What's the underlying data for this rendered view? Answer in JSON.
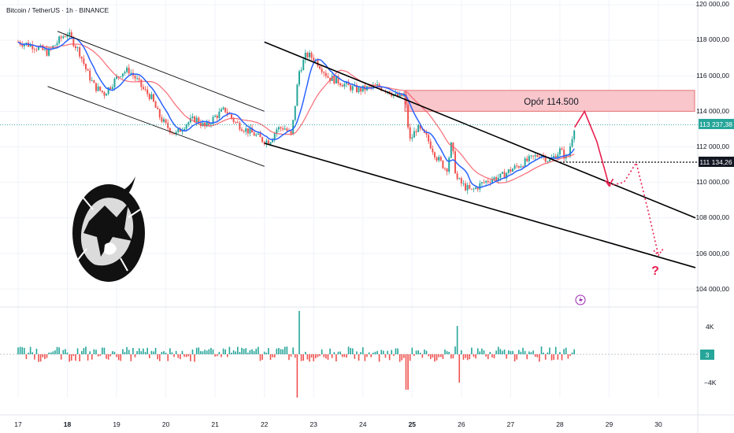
{
  "header": {
    "title": "Bitcoin / TetherUS · 1h · BINANCE"
  },
  "price_axis": {
    "ticks": [
      "120 000,00",
      "118 000,00",
      "116 000,00",
      "114 000,00",
      "112 000,00",
      "110 000,00",
      "108 000,00",
      "106 000,00",
      "104 000,00"
    ]
  },
  "badges": {
    "current_price": "113 237,38",
    "level_price": "111 134,26",
    "volume_value": "3"
  },
  "volume_axis": {
    "ticks": [
      "4K",
      "−4K"
    ]
  },
  "resistance": {
    "label": "Opór 114.500"
  },
  "question_mark": "?",
  "colors": {
    "up": "#26a69a",
    "down": "#ef5350",
    "ma_fast": "#2962ff",
    "ma_slow": "#f7525f",
    "zone": "#f8c6cb",
    "projection": "#e91e4f"
  },
  "icons": {
    "logo": "bull-bear-logo-icon",
    "lightning": "lightning-icon"
  },
  "chart_data": {
    "type": "candlestick",
    "title": "Bitcoin / TetherUS · 1h · BINANCE",
    "x_labels": [
      "17",
      "18",
      "19",
      "20",
      "21",
      "22",
      "23",
      "24",
      "25",
      "26",
      "27",
      "28",
      "29",
      "30"
    ],
    "ylim": [
      104000,
      120000
    ],
    "current_price": 113237.38,
    "horizontal_level": 111134.26,
    "resistance_zone": [
      114000,
      115000
    ],
    "path_points": [
      [
        17.0,
        117900
      ],
      [
        17.3,
        117700
      ],
      [
        17.6,
        117300
      ],
      [
        17.9,
        118200
      ],
      [
        18.0,
        118400
      ],
      [
        18.1,
        118000
      ],
      [
        18.25,
        117300
      ],
      [
        18.4,
        116200
      ],
      [
        18.55,
        115400
      ],
      [
        18.75,
        115000
      ],
      [
        18.95,
        115700
      ],
      [
        19.1,
        116200
      ],
      [
        19.25,
        116300
      ],
      [
        19.4,
        115800
      ],
      [
        19.55,
        115200
      ],
      [
        19.7,
        114800
      ],
      [
        19.85,
        113800
      ],
      [
        20.0,
        113200
      ],
      [
        20.2,
        112700
      ],
      [
        20.4,
        113300
      ],
      [
        20.6,
        113600
      ],
      [
        20.8,
        113100
      ],
      [
        21.0,
        113700
      ],
      [
        21.2,
        114100
      ],
      [
        21.4,
        113400
      ],
      [
        21.6,
        113000
      ],
      [
        21.8,
        112700
      ],
      [
        21.95,
        112400
      ],
      [
        22.1,
        112300
      ],
      [
        22.25,
        113000
      ],
      [
        22.4,
        113100
      ],
      [
        22.55,
        112600
      ],
      [
        22.7,
        116200
      ],
      [
        22.85,
        117200
      ],
      [
        23.0,
        117000
      ],
      [
        23.15,
        116500
      ],
      [
        23.3,
        115900
      ],
      [
        23.5,
        115700
      ],
      [
        23.7,
        115400
      ],
      [
        23.9,
        115200
      ],
      [
        24.1,
        115300
      ],
      [
        24.3,
        115400
      ],
      [
        24.5,
        115200
      ],
      [
        24.7,
        114800
      ],
      [
        24.85,
        114900
      ],
      [
        24.95,
        112300
      ],
      [
        25.1,
        113100
      ],
      [
        25.3,
        112500
      ],
      [
        25.5,
        111400
      ],
      [
        25.7,
        110700
      ],
      [
        25.8,
        112200
      ],
      [
        25.9,
        110200
      ],
      [
        26.05,
        109800
      ],
      [
        26.2,
        109500
      ],
      [
        26.4,
        109900
      ],
      [
        26.6,
        110200
      ],
      [
        26.8,
        110300
      ],
      [
        27.0,
        110700
      ],
      [
        27.2,
        111000
      ],
      [
        27.4,
        111300
      ],
      [
        27.6,
        111600
      ],
      [
        27.8,
        111200
      ],
      [
        28.0,
        111800
      ],
      [
        28.15,
        111300
      ],
      [
        28.3,
        113237
      ]
    ],
    "projection": {
      "solid": [
        [
          28.3,
          113100
        ],
        [
          28.5,
          114000
        ],
        [
          28.75,
          112300
        ],
        [
          29.0,
          109800
        ]
      ],
      "dotted": [
        [
          29.3,
          110000
        ],
        [
          29.55,
          111100
        ],
        [
          29.8,
          108300
        ],
        [
          30.0,
          105900
        ]
      ]
    },
    "trendlines": [
      [
        [
          17.8,
          118500
        ],
        [
          22.0,
          114000
        ]
      ],
      [
        [
          17.6,
          115400
        ],
        [
          22.0,
          110900
        ]
      ],
      [
        [
          22.0,
          117900
        ],
        [
          31.0,
          108000
        ]
      ],
      [
        [
          22.0,
          112200
        ],
        [
          31.0,
          105200
        ]
      ]
    ],
    "volume_ticks": [
      "4K",
      "−4K"
    ]
  }
}
